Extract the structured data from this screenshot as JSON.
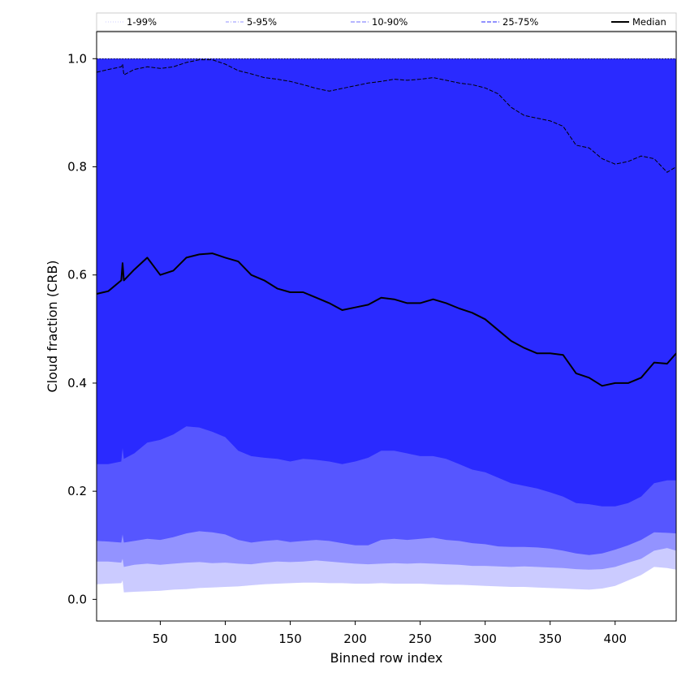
{
  "chart_data": {
    "type": "area",
    "title": "",
    "xlabel": "Binned row index",
    "ylabel": "Cloud fraction (CRB)",
    "xlim": [
      1,
      447
    ],
    "ylim": [
      -0.04,
      1.05
    ],
    "xticks": [
      50,
      100,
      150,
      200,
      250,
      300,
      350,
      400
    ],
    "yticks": [
      0.0,
      0.2,
      0.4,
      0.6,
      0.8,
      1.0
    ],
    "ytick_labels": [
      "0.0",
      "0.2",
      "0.4",
      "0.6",
      "0.8",
      "1.0"
    ],
    "grid": false,
    "legend_position": "top",
    "legend": [
      {
        "name": "1-99%",
        "style": "dotted",
        "color": "#d6d6ff"
      },
      {
        "name": "5-95%",
        "style": "dashdot",
        "color": "#a8a8ff"
      },
      {
        "name": "10-90%",
        "style": "dashed",
        "color": "#8a8aff"
      },
      {
        "name": "25-75%",
        "style": "dashed",
        "color": "#5050ff"
      },
      {
        "name": "Median",
        "style": "solid",
        "color": "#000000"
      }
    ],
    "x": [
      1,
      10,
      20,
      21,
      22,
      30,
      40,
      50,
      60,
      70,
      80,
      90,
      100,
      110,
      120,
      130,
      140,
      150,
      160,
      170,
      180,
      190,
      200,
      210,
      220,
      230,
      240,
      250,
      260,
      270,
      280,
      290,
      300,
      310,
      320,
      330,
      340,
      350,
      360,
      370,
      380,
      390,
      400,
      410,
      420,
      430,
      440,
      447
    ],
    "series": [
      {
        "name": "1-99%",
        "lower": [
          0.028,
          0.029,
          0.03,
          0.035,
          0.013,
          0.014,
          0.015,
          0.016,
          0.018,
          0.019,
          0.021,
          0.022,
          0.023,
          0.024,
          0.026,
          0.028,
          0.029,
          0.03,
          0.031,
          0.031,
          0.03,
          0.03,
          0.029,
          0.029,
          0.03,
          0.029,
          0.029,
          0.029,
          0.028,
          0.027,
          0.027,
          0.026,
          0.025,
          0.024,
          0.023,
          0.023,
          0.022,
          0.021,
          0.02,
          0.019,
          0.018,
          0.02,
          0.025,
          0.035,
          0.045,
          0.06,
          0.058,
          0.055
        ],
        "upper": [
          1.0,
          1.0,
          1.0,
          1.0,
          1.0,
          1.0,
          1.0,
          1.0,
          1.0,
          1.0,
          1.0,
          1.0,
          1.0,
          1.0,
          1.0,
          1.0,
          1.0,
          1.0,
          1.0,
          1.0,
          1.0,
          1.0,
          1.0,
          1.0,
          1.0,
          1.0,
          1.0,
          1.0,
          1.0,
          1.0,
          1.0,
          1.0,
          1.0,
          1.0,
          1.0,
          1.0,
          1.0,
          1.0,
          1.0,
          1.0,
          1.0,
          1.0,
          1.0,
          1.0,
          1.0,
          1.0,
          1.0,
          1.0
        ]
      },
      {
        "name": "5-95%",
        "lower": [
          0.07,
          0.07,
          0.068,
          0.075,
          0.06,
          0.064,
          0.066,
          0.064,
          0.066,
          0.068,
          0.069,
          0.067,
          0.068,
          0.066,
          0.065,
          0.068,
          0.07,
          0.069,
          0.07,
          0.072,
          0.07,
          0.068,
          0.066,
          0.065,
          0.066,
          0.067,
          0.066,
          0.067,
          0.066,
          0.065,
          0.064,
          0.062,
          0.062,
          0.061,
          0.06,
          0.061,
          0.06,
          0.059,
          0.058,
          0.056,
          0.055,
          0.056,
          0.06,
          0.068,
          0.075,
          0.09,
          0.095,
          0.09
        ],
        "upper": [
          1.0,
          1.0,
          1.0,
          1.0,
          1.0,
          1.0,
          1.0,
          1.0,
          1.0,
          1.0,
          1.0,
          1.0,
          1.0,
          1.0,
          1.0,
          1.0,
          1.0,
          1.0,
          1.0,
          1.0,
          1.0,
          1.0,
          1.0,
          1.0,
          1.0,
          1.0,
          1.0,
          1.0,
          1.0,
          1.0,
          1.0,
          1.0,
          1.0,
          1.0,
          1.0,
          1.0,
          1.0,
          1.0,
          1.0,
          1.0,
          1.0,
          1.0,
          1.0,
          1.0,
          1.0,
          1.0,
          1.0,
          1.0
        ]
      },
      {
        "name": "10-90%",
        "lower": [
          0.108,
          0.107,
          0.105,
          0.12,
          0.105,
          0.108,
          0.112,
          0.11,
          0.115,
          0.122,
          0.126,
          0.124,
          0.12,
          0.11,
          0.105,
          0.108,
          0.11,
          0.106,
          0.108,
          0.11,
          0.108,
          0.104,
          0.1,
          0.1,
          0.11,
          0.112,
          0.11,
          0.112,
          0.114,
          0.11,
          0.108,
          0.104,
          0.102,
          0.098,
          0.097,
          0.097,
          0.096,
          0.094,
          0.09,
          0.085,
          0.082,
          0.085,
          0.092,
          0.1,
          0.11,
          0.124,
          0.123,
          0.122
        ],
        "upper": [
          0.975,
          0.98,
          0.985,
          0.99,
          0.97,
          0.98,
          0.985,
          0.982,
          0.985,
          0.993,
          0.998,
          0.998,
          0.99,
          0.978,
          0.972,
          0.965,
          0.962,
          0.958,
          0.952,
          0.945,
          0.94,
          0.945,
          0.95,
          0.955,
          0.958,
          0.962,
          0.96,
          0.962,
          0.965,
          0.96,
          0.955,
          0.952,
          0.946,
          0.935,
          0.91,
          0.895,
          0.89,
          0.885,
          0.875,
          0.84,
          0.835,
          0.815,
          0.805,
          0.81,
          0.82,
          0.815,
          0.79,
          0.8
        ]
      },
      {
        "name": "25-75%",
        "lower": [
          0.25,
          0.25,
          0.255,
          0.28,
          0.26,
          0.27,
          0.29,
          0.295,
          0.305,
          0.32,
          0.318,
          0.31,
          0.3,
          0.275,
          0.265,
          0.262,
          0.26,
          0.255,
          0.26,
          0.258,
          0.255,
          0.25,
          0.255,
          0.262,
          0.275,
          0.275,
          0.27,
          0.265,
          0.265,
          0.26,
          0.25,
          0.24,
          0.235,
          0.225,
          0.215,
          0.21,
          0.205,
          0.198,
          0.19,
          0.178,
          0.176,
          0.172,
          0.172,
          0.178,
          0.19,
          0.215,
          0.22,
          0.22
        ],
        "upper": [
          1.0,
          1.0,
          1.0,
          1.0,
          1.0,
          1.0,
          1.0,
          1.0,
          1.0,
          1.0,
          1.0,
          1.0,
          1.0,
          1.0,
          1.0,
          1.0,
          1.0,
          1.0,
          1.0,
          1.0,
          1.0,
          1.0,
          1.0,
          1.0,
          1.0,
          1.0,
          1.0,
          1.0,
          1.0,
          1.0,
          1.0,
          1.0,
          1.0,
          1.0,
          1.0,
          1.0,
          1.0,
          1.0,
          1.0,
          1.0,
          1.0,
          1.0,
          1.0,
          1.0,
          1.0,
          1.0,
          1.0,
          1.0
        ]
      },
      {
        "name": "Median",
        "values": [
          0.565,
          0.57,
          0.59,
          0.622,
          0.59,
          0.61,
          0.632,
          0.6,
          0.608,
          0.632,
          0.638,
          0.64,
          0.632,
          0.625,
          0.6,
          0.59,
          0.575,
          0.568,
          0.568,
          0.558,
          0.548,
          0.535,
          0.54,
          0.545,
          0.558,
          0.555,
          0.548,
          0.548,
          0.555,
          0.548,
          0.538,
          0.53,
          0.518,
          0.498,
          0.478,
          0.465,
          0.455,
          0.455,
          0.452,
          0.418,
          0.41,
          0.395,
          0.4,
          0.4,
          0.41,
          0.438,
          0.436,
          0.455
        ]
      }
    ]
  }
}
